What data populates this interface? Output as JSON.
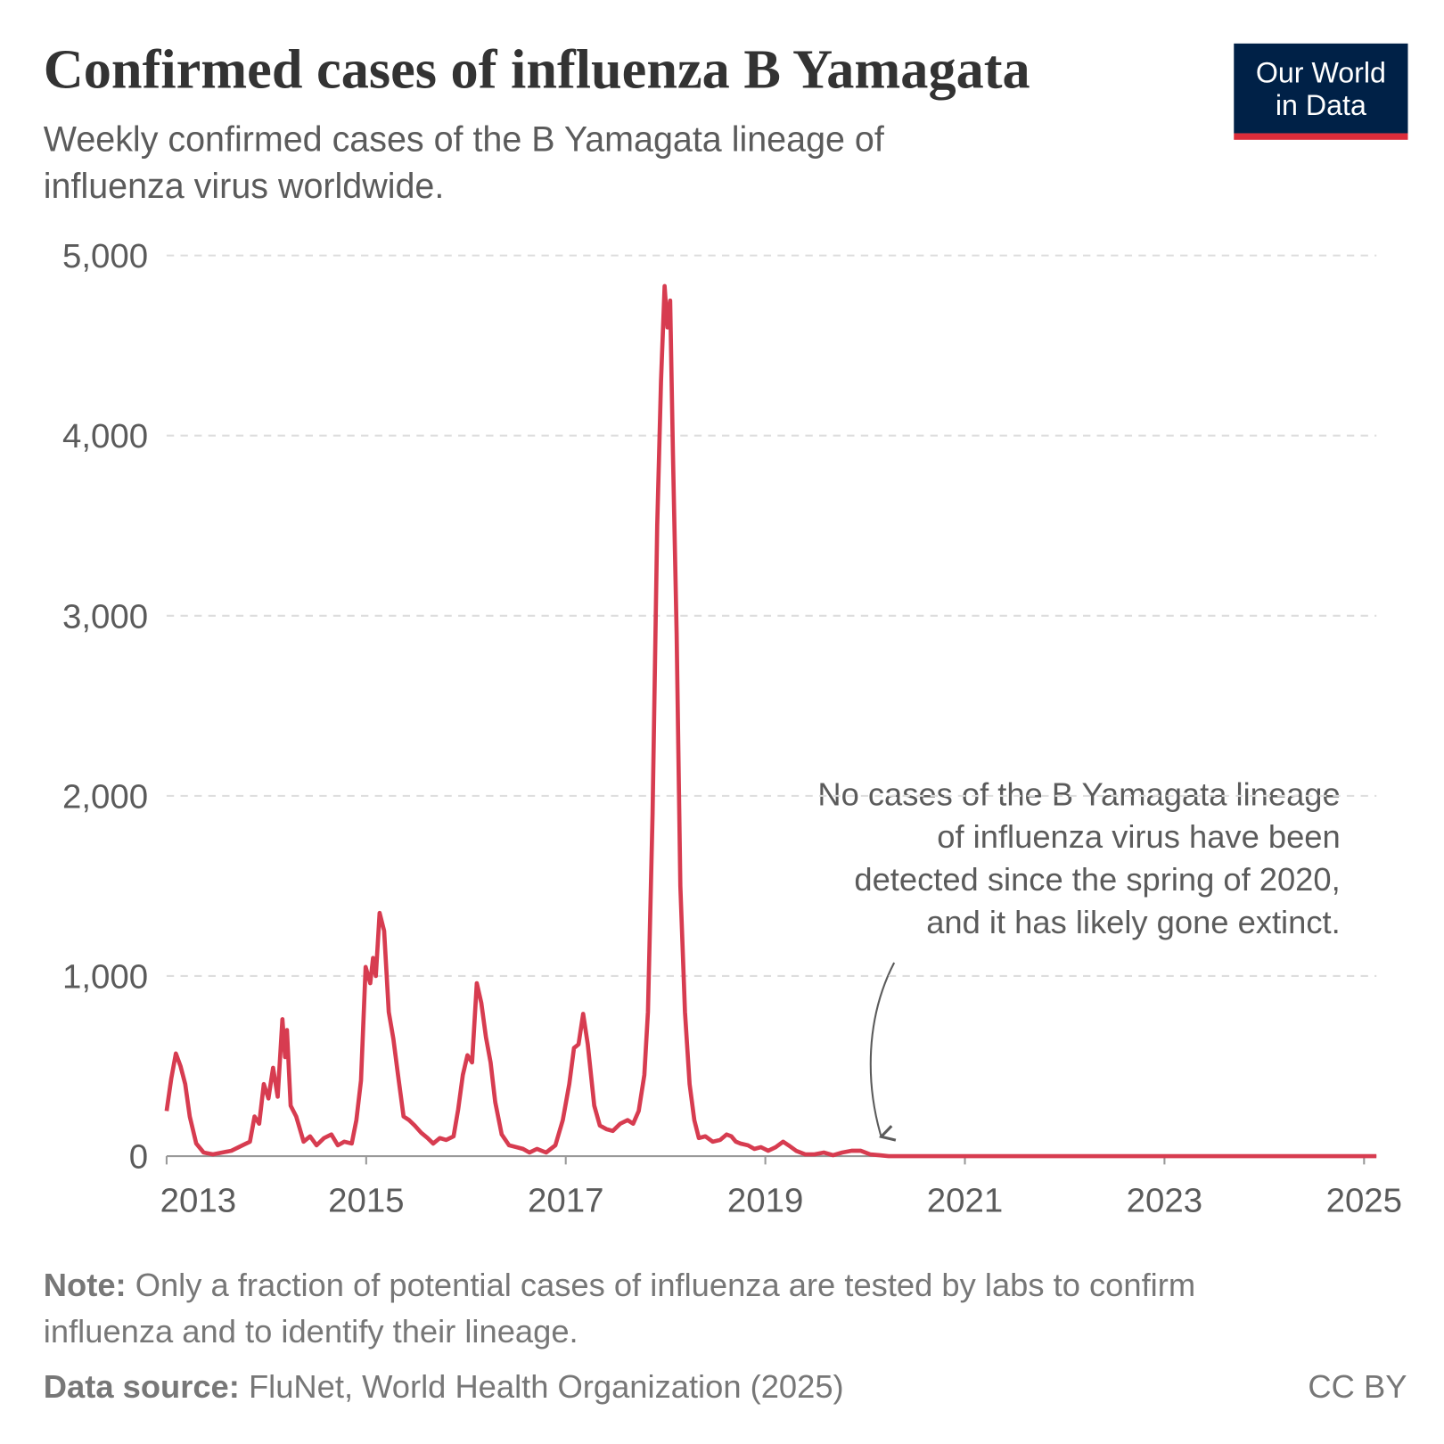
{
  "chart_data": {
    "type": "line",
    "title": "Confirmed cases of influenza B Yamagata",
    "subtitle": [
      "Weekly confirmed cases of the B Yamagata lineage of",
      "influenza virus worldwide."
    ],
    "logo": [
      "Our World",
      "in Data"
    ],
    "annotation": [
      "No cases of the B Yamagata lineage",
      "of influenza virus have been",
      "detected since the spring of 2020,",
      "and it has likely gone extinct."
    ],
    "note_label": "Note:",
    "note": [
      "Only a fraction of potential cases of influenza are tested by labs to confirm",
      "influenza and to identify their lineage."
    ],
    "source_label": "Data source:",
    "source": "FluNet, World Health Organization (2025)",
    "license": "CC BY",
    "grid": true,
    "xlim": [
      2013,
      2025.124
    ],
    "xticks": [
      2013,
      2015,
      2017,
      2019,
      2021,
      2023,
      2025
    ],
    "ylim": [
      0,
      5000
    ],
    "yticks": [
      {
        "value": 0,
        "label": "0"
      },
      {
        "value": 1000,
        "label": "1,000"
      },
      {
        "value": 2000,
        "label": "2,000"
      },
      {
        "value": 3000,
        "label": "3,000"
      },
      {
        "value": 4000,
        "label": "4,000"
      },
      {
        "value": 5000,
        "label": "5,000"
      }
    ],
    "x": [
      2013.0,
      2013.046,
      2013.093,
      2013.139,
      2013.186,
      2013.232,
      2013.297,
      2013.371,
      2013.464,
      2013.557,
      2013.649,
      2013.761,
      2013.835,
      2013.881,
      2013.928,
      2013.974,
      2014.02,
      2014.067,
      2014.113,
      2014.16,
      2014.187,
      2014.206,
      2014.243,
      2014.299,
      2014.373,
      2014.438,
      2014.503,
      2014.577,
      2014.651,
      2014.716,
      2014.781,
      2014.855,
      2014.902,
      2014.948,
      2014.994,
      2015.041,
      2015.069,
      2015.096,
      2015.134,
      2015.18,
      2015.226,
      2015.273,
      2015.319,
      2015.375,
      2015.43,
      2015.486,
      2015.551,
      2015.616,
      2015.672,
      2015.737,
      2015.801,
      2015.876,
      2015.922,
      2015.968,
      2016.015,
      2016.061,
      2016.108,
      2016.154,
      2016.2,
      2016.247,
      2016.293,
      2016.358,
      2016.432,
      2016.506,
      2016.571,
      2016.636,
      2016.711,
      2016.803,
      2016.896,
      2016.97,
      2017.035,
      2017.082,
      2017.128,
      2017.174,
      2017.221,
      2017.286,
      2017.341,
      2017.406,
      2017.471,
      2017.545,
      2017.62,
      2017.675,
      2017.731,
      2017.787,
      2017.824,
      2017.87,
      2017.916,
      2017.954,
      2017.991,
      2018.019,
      2018.046,
      2018.074,
      2018.111,
      2018.148,
      2018.195,
      2018.241,
      2018.288,
      2018.334,
      2018.399,
      2018.473,
      2018.547,
      2018.612,
      2018.659,
      2018.705,
      2018.751,
      2018.825,
      2018.89,
      2018.955,
      2019.029,
      2019.104,
      2019.178,
      2019.233,
      2019.308,
      2019.4,
      2019.493,
      2019.586,
      2019.679,
      2019.771,
      2019.864,
      2019.957,
      2020.05,
      2020.142,
      2020.235,
      2020.606,
      2025.124
    ],
    "series": [
      {
        "name": "B Yamagata",
        "color": "#d73c50",
        "values": [
          250,
          430,
          570,
          500,
          400,
          220,
          70,
          20,
          10,
          20,
          30,
          60,
          80,
          220,
          180,
          400,
          320,
          490,
          330,
          760,
          550,
          700,
          280,
          220,
          80,
          110,
          60,
          100,
          120,
          60,
          80,
          70,
          200,
          420,
          1050,
          960,
          1100,
          1000,
          1350,
          1250,
          800,
          650,
          450,
          220,
          200,
          170,
          130,
          100,
          70,
          100,
          90,
          110,
          260,
          450,
          560,
          520,
          960,
          850,
          660,
          520,
          300,
          120,
          60,
          50,
          40,
          20,
          40,
          20,
          60,
          200,
          400,
          600,
          620,
          790,
          620,
          280,
          170,
          150,
          140,
          180,
          200,
          180,
          250,
          450,
          800,
          1900,
          3500,
          4300,
          4830,
          4600,
          4750,
          3900,
          2900,
          1500,
          800,
          400,
          200,
          100,
          110,
          80,
          90,
          120,
          110,
          80,
          70,
          60,
          40,
          50,
          30,
          50,
          80,
          60,
          30,
          10,
          10,
          20,
          5,
          20,
          30,
          30,
          10,
          5,
          0,
          0,
          0
        ]
      }
    ]
  }
}
